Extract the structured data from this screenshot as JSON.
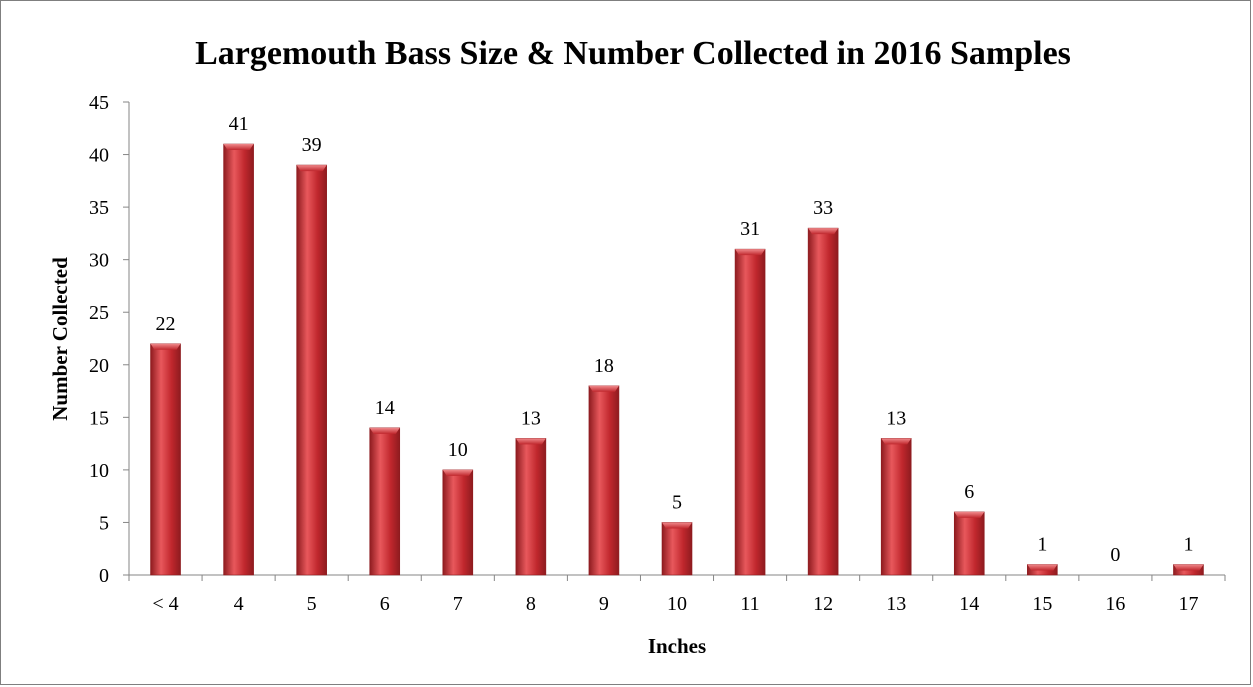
{
  "chart_data": {
    "type": "bar",
    "title": "Largemouth Bass Size & Number Collected in 2016 Samples",
    "xlabel": "Inches",
    "ylabel": "Number Collected",
    "categories": [
      "< 4",
      "4",
      "5",
      "6",
      "7",
      "8",
      "9",
      "10",
      "11",
      "12",
      "13",
      "14",
      "15",
      "16",
      "17"
    ],
    "values": [
      22,
      41,
      39,
      14,
      10,
      13,
      18,
      5,
      31,
      33,
      13,
      6,
      1,
      0,
      1
    ],
    "ylim": [
      0,
      45
    ],
    "yticks": [
      0,
      5,
      10,
      15,
      20,
      25,
      30,
      35,
      40,
      45
    ],
    "grid": false,
    "legend": "none",
    "data_labels": true,
    "bar_color": "#c0272d",
    "bar_highlight": "#e8585c",
    "bar_shadow": "#8e1b1f"
  }
}
